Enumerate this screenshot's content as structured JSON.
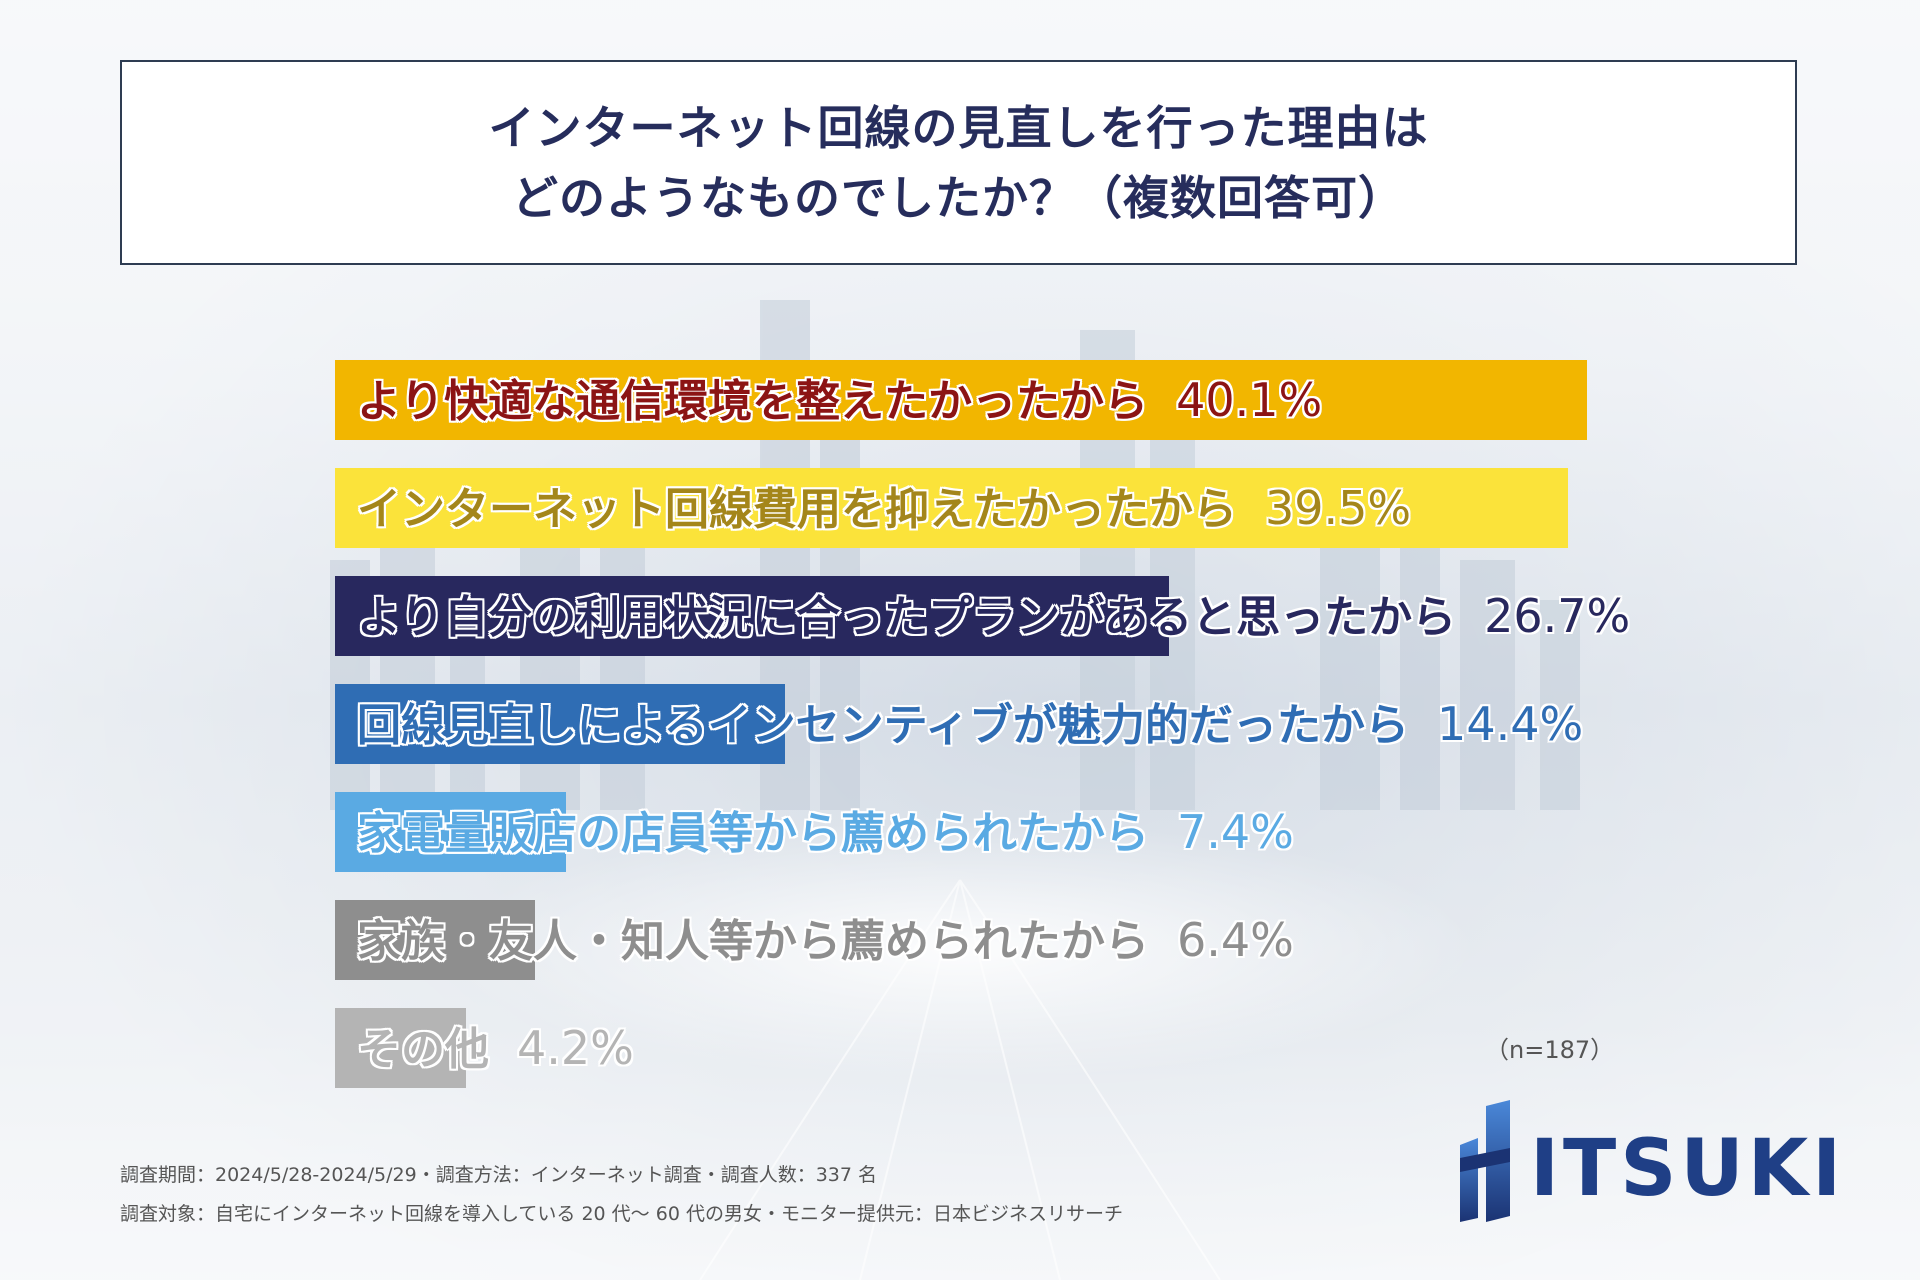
{
  "title": {
    "line1": "インターネット回線の見直しを行った理由は",
    "line2": "どのようなものでしたか？（複数回答可）"
  },
  "chart_data": {
    "type": "bar",
    "orientation": "horizontal",
    "categories": [
      "より快適な通信環境を整えたかったから",
      "インターネット回線費用を抑えたかったから",
      "より自分の利用状況に合ったプランがあると思ったから",
      "回線見直しによるインセンティブが魅力的だったから",
      "家電量販店の店員等から薦められたから",
      "家族・友人・知人等から薦められたから",
      "その他"
    ],
    "values": [
      40.1,
      39.5,
      26.7,
      14.4,
      7.4,
      6.4,
      4.2
    ],
    "value_labels": [
      "40.1%",
      "39.5%",
      "26.7%",
      "14.4%",
      "7.4%",
      "6.4%",
      "4.2%"
    ],
    "bar_colors": [
      "#f2b600",
      "#fbe33a",
      "#28285e",
      "#2f6db4",
      "#5aaae3",
      "#8e8e8e",
      "#b4b4b4"
    ],
    "text_colors": [
      "#8c1414",
      "#a4861a",
      "#28285e",
      "#2f6db4",
      "#5aaae3",
      "#8e8e8e",
      "#b4b4b4"
    ],
    "xlim": [
      0,
      40.1
    ],
    "note": "（n=187）"
  },
  "footer": {
    "line1": "調査期間：2024/5/28-2024/5/29・調査方法：インターネット調査・調査人数：337 名",
    "line2": "調査対象：自宅にインターネット回線を導入している 20 代～ 60 代の男女・モニター提供元：日本ビジネスリサーチ"
  },
  "logo": {
    "text": "ITSUKI",
    "color": "#1f3f86"
  }
}
